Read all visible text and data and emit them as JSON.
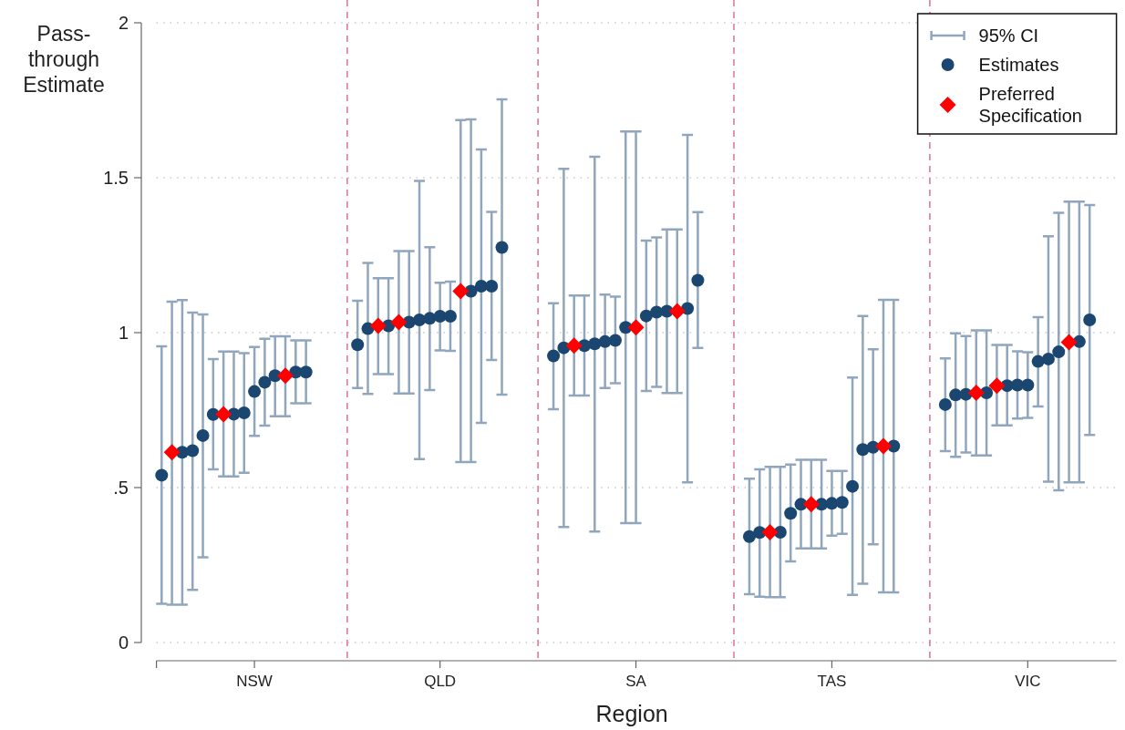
{
  "chart_data": {
    "type": "scatter",
    "xlabel": "Region",
    "ylabel": "Pass-through Estimate",
    "annotations": [
      "95% CI"
    ],
    "categories": [
      null,
      null,
      null,
      null,
      null,
      null,
      null,
      null,
      null,
      "NSW",
      null,
      null,
      null,
      null,
      null,
      null,
      null,
      null,
      null,
      null,
      null,
      null,
      null,
      null,
      null,
      null,
      null,
      "QLD",
      null,
      null,
      null,
      null,
      null,
      null,
      null,
      null,
      null,
      null,
      null,
      null,
      null,
      null,
      null,
      null,
      null,
      null,
      "SA",
      null,
      null,
      null,
      null,
      null,
      null,
      null,
      null,
      null,
      null,
      null,
      null,
      null,
      null,
      null,
      null,
      null,
      null,
      "TAS",
      null,
      null,
      null,
      null,
      null,
      null,
      null,
      null,
      null,
      null,
      null,
      null,
      null,
      null,
      null,
      null,
      null,
      null,
      "VIC",
      null,
      null,
      null,
      null,
      null,
      null
    ],
    "ylim": [
      0,
      2
    ],
    "yticks": [
      0,
      {
        "value": 0.5,
        "label": ".5"
      },
      1,
      1.5,
      2
    ],
    "grid": true,
    "legend": "top right",
    "series": [
      {
        "name": "Estimates",
        "color": "#1a4670",
        "marker": "circle",
        "values": [
          0.54,
          null,
          0.614,
          0.619,
          0.668,
          0.736,
          null,
          0.737,
          0.741,
          0.81,
          0.84,
          0.861,
          null,
          0.873,
          0.873,
          null,
          null,
          null,
          null,
          0.961,
          1.013,
          null,
          1.022,
          null,
          1.034,
          1.041,
          1.046,
          1.053,
          1.053,
          null,
          1.134,
          1.15,
          1.15,
          1.275,
          null,
          null,
          null,
          null,
          0.925,
          0.951,
          null,
          0.958,
          0.964,
          0.971,
          0.975,
          1.017,
          null,
          1.054,
          1.066,
          1.069,
          null,
          1.078,
          1.169,
          null,
          null,
          null,
          null,
          0.342,
          0.355,
          null,
          0.356,
          0.417,
          0.446,
          null,
          0.446,
          0.449,
          0.452,
          0.504,
          0.623,
          0.63,
          null,
          0.634,
          null,
          null,
          null,
          null,
          0.768,
          0.799,
          0.801,
          null,
          0.806,
          null,
          0.829,
          0.831,
          0.831,
          0.907,
          0.915,
          0.938,
          null,
          0.971,
          1.041
        ],
        "errors": [
          [
            0.125,
            0.956
          ],
          null,
          [
            0.122,
            1.105
          ],
          [
            0.17,
            1.065
          ],
          [
            0.275,
            1.059
          ],
          [
            0.559,
            0.915
          ],
          null,
          [
            0.536,
            0.939
          ],
          [
            0.548,
            0.934
          ],
          [
            0.667,
            0.954
          ],
          [
            0.7,
            0.98
          ],
          [
            0.73,
            0.988
          ],
          null,
          [
            0.772,
            0.975
          ],
          [
            0.772,
            0.975
          ],
          null,
          null,
          null,
          null,
          [
            0.821,
            1.103
          ],
          [
            0.802,
            1.225
          ],
          null,
          [
            0.866,
            1.176
          ],
          null,
          [
            0.804,
            1.263
          ],
          [
            0.592,
            1.49
          ],
          [
            0.815,
            1.276
          ],
          [
            0.943,
            1.161
          ],
          [
            0.941,
            1.165
          ],
          null,
          [
            0.582,
            1.688
          ],
          [
            0.709,
            1.591
          ],
          [
            0.912,
            1.39
          ],
          [
            0.8,
            1.753
          ],
          null,
          null,
          null,
          null,
          [
            0.753,
            1.095
          ],
          [
            0.373,
            1.529
          ],
          null,
          [
            0.797,
            1.12
          ],
          [
            0.358,
            1.568
          ],
          [
            0.821,
            1.123
          ],
          [
            0.837,
            1.116
          ],
          [
            0.385,
            1.649
          ],
          null,
          [
            0.812,
            1.297
          ],
          [
            0.825,
            1.307
          ],
          [
            0.805,
            1.333
          ],
          null,
          [
            0.517,
            1.638
          ],
          [
            0.951,
            1.389
          ],
          null,
          null,
          null,
          null,
          [
            0.156,
            0.529
          ],
          [
            0.148,
            0.559
          ],
          null,
          [
            0.146,
            0.567
          ],
          [
            0.262,
            0.574
          ],
          [
            0.304,
            0.59
          ],
          null,
          [
            0.304,
            0.59
          ],
          [
            0.345,
            0.554
          ],
          [
            0.351,
            0.554
          ],
          [
            0.154,
            0.855
          ],
          [
            0.19,
            1.054
          ],
          [
            0.317,
            0.946
          ],
          null,
          [
            0.162,
            1.106
          ],
          null,
          null,
          null,
          null,
          [
            0.618,
            0.917
          ],
          [
            0.599,
            0.998
          ],
          [
            0.613,
            0.989
          ],
          null,
          [
            0.604,
            1.007
          ],
          null,
          [
            0.701,
            0.96
          ],
          [
            0.723,
            0.94
          ],
          [
            0.725,
            0.937
          ],
          [
            0.762,
            1.05
          ],
          [
            0.519,
            1.311
          ],
          [
            0.491,
            1.387
          ],
          null,
          [
            0.517,
            1.423
          ],
          [
            0.67,
            1.412
          ]
        ]
      },
      {
        "name": "Preferred Specification",
        "color": "#ff0000",
        "marker": "diamond",
        "values": [
          null,
          0.614,
          null,
          null,
          null,
          null,
          0.737,
          null,
          null,
          null,
          null,
          null,
          0.861,
          null,
          null,
          null,
          null,
          null,
          null,
          null,
          null,
          1.022,
          null,
          1.034,
          null,
          null,
          null,
          null,
          null,
          1.134,
          null,
          null,
          null,
          null,
          null,
          null,
          null,
          null,
          null,
          null,
          0.958,
          null,
          null,
          null,
          null,
          null,
          1.017,
          null,
          null,
          null,
          1.069,
          null,
          null,
          null,
          null,
          null,
          null,
          null,
          null,
          0.356,
          null,
          null,
          null,
          0.446,
          null,
          null,
          null,
          null,
          null,
          null,
          0.634,
          null,
          null,
          null,
          null,
          null,
          null,
          null,
          null,
          0.806,
          null,
          0.829,
          null,
          null,
          null,
          null,
          null,
          null,
          0.969,
          null,
          null
        ],
        "errors": [
          null,
          [
            0.122,
            1.1
          ],
          null,
          null,
          null,
          null,
          [
            0.536,
            0.939
          ],
          null,
          null,
          null,
          null,
          null,
          [
            0.73,
            0.988
          ],
          null,
          null,
          null,
          null,
          null,
          null,
          null,
          null,
          [
            0.866,
            1.176
          ],
          null,
          [
            0.804,
            1.263
          ],
          null,
          null,
          null,
          null,
          null,
          [
            0.582,
            1.686
          ],
          null,
          null,
          null,
          null,
          null,
          null,
          null,
          null,
          null,
          null,
          [
            0.797,
            1.12
          ],
          null,
          null,
          null,
          null,
          null,
          [
            0.385,
            1.649
          ],
          null,
          null,
          null,
          [
            0.805,
            1.333
          ],
          null,
          null,
          null,
          null,
          null,
          null,
          null,
          null,
          [
            0.146,
            0.567
          ],
          null,
          null,
          null,
          [
            0.304,
            0.59
          ],
          null,
          null,
          null,
          null,
          null,
          null,
          [
            0.162,
            1.106
          ],
          null,
          null,
          null,
          null,
          null,
          null,
          null,
          null,
          [
            0.604,
            1.007
          ],
          null,
          [
            0.701,
            0.96
          ],
          null,
          null,
          null,
          null,
          null,
          null,
          [
            0.517,
            1.423
          ],
          null,
          null
        ]
      }
    ]
  }
}
